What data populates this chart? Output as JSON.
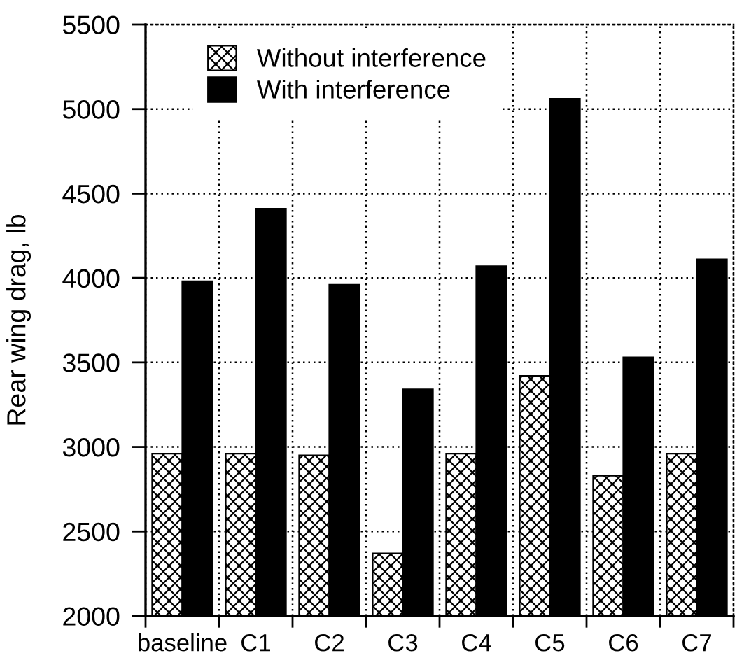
{
  "chart_data": {
    "type": "bar",
    "ylabel": "Rear wing drag, lb",
    "categories": [
      "baseline",
      "C1",
      "C2",
      "C3",
      "C4",
      "C5",
      "C6",
      "C7"
    ],
    "series": [
      {
        "name": "Without interference",
        "color": "#000000",
        "values": [
          2960,
          2960,
          2950,
          2370,
          2960,
          3420,
          2830,
          2960
        ]
      },
      {
        "name": "With interference",
        "color": "#000000",
        "values": [
          3980,
          4410,
          3960,
          3340,
          4070,
          5060,
          3530,
          4110
        ]
      }
    ],
    "ylim": [
      2000,
      5500
    ],
    "yticks": [
      2000,
      2500,
      3000,
      3500,
      4000,
      4500,
      5000,
      5500
    ],
    "grid": true,
    "legend": "top left"
  }
}
